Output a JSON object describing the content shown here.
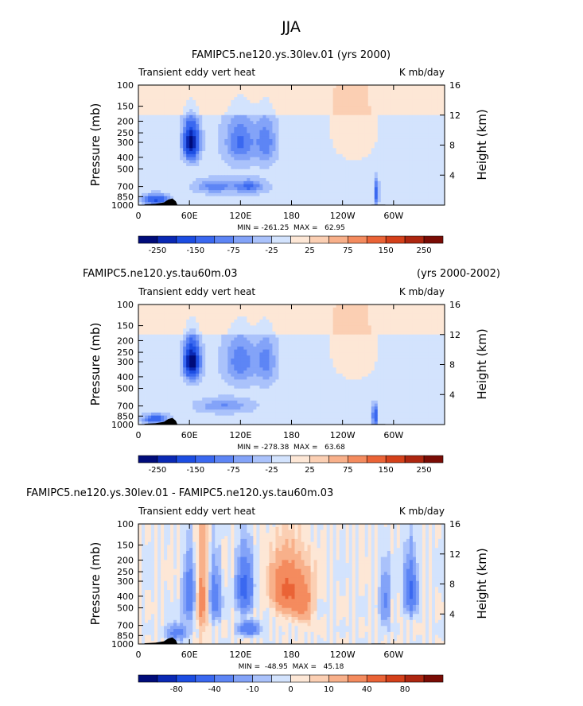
{
  "season": "JJA",
  "colors": {
    "blue": [
      "#000c7a",
      "#0a29b4",
      "#1c4de2",
      "#3a68f0",
      "#5d85f5",
      "#83a3f8",
      "#aac2fb",
      "#d3e3fd"
    ],
    "red": [
      "#fde7d6",
      "#fbcfb3",
      "#f8b08a",
      "#f48b5e",
      "#ea6336",
      "#d4401a",
      "#ad2610",
      "#7a0c05"
    ],
    "neutral": "#fdfdfd"
  },
  "chart_data": [
    {
      "type": "heatmap",
      "title_left": "FAMIPC5.ne120.ys.30lev.01 (yrs 2000)",
      "title_right": "",
      "subtitle": "Transient eddy vert heat",
      "units": "K mb/day",
      "ylabel_left": "Pressure (mb)",
      "ylabel_right": "Height (km)",
      "pressure_ticks": [
        "100",
        "150",
        "200",
        "250",
        "300",
        "400",
        "500",
        "700",
        "850",
        "1000"
      ],
      "height_ticks": [
        "16",
        "12",
        "8",
        "4"
      ],
      "x_ticks": [
        "0",
        "60E",
        "120E",
        "180",
        "120W",
        "60W"
      ],
      "min_max": "MIN = -261.25  MAX =   62.95",
      "colorbar_labels": [
        "-250",
        "-150",
        "-75",
        "-25",
        "25",
        "75",
        "150",
        "250"
      ],
      "colorbar_levels": [
        -300,
        -250,
        -200,
        -150,
        -100,
        -75,
        -50,
        -25,
        0,
        25,
        50,
        75,
        100,
        150,
        200,
        250,
        300
      ],
      "value_range": [
        -261.25,
        62.95
      ],
      "features": [
        {
          "lon": 62,
          "p": 300,
          "value": -261,
          "spread_lon": 6,
          "spread_p": 70
        },
        {
          "lon": 120,
          "p": 300,
          "value": -90,
          "spread_lon": 12,
          "spread_p": 90
        },
        {
          "lon": 150,
          "p": 300,
          "value": -75,
          "spread_lon": 8,
          "spread_p": 90
        },
        {
          "lon": 90,
          "p": 700,
          "value": -75,
          "spread_lon": 15,
          "spread_p": 60
        },
        {
          "lon": 130,
          "p": 700,
          "value": -90,
          "spread_lon": 12,
          "spread_p": 60
        },
        {
          "lon": 280,
          "p": 800,
          "value": -120,
          "spread_lon": 2,
          "spread_p": 150
        },
        {
          "lon": 20,
          "p": 900,
          "value": -150,
          "spread_lon": 10,
          "spread_p": 60
        },
        {
          "lon": 250,
          "p": 200,
          "value": 25,
          "spread_lon": 20,
          "spread_p": 150
        }
      ]
    },
    {
      "type": "heatmap",
      "title_left": "FAMIPC5.ne120.ys.tau60m.03",
      "title_right": "(yrs 2000-2002)",
      "subtitle": "Transient eddy vert heat",
      "units": "K mb/day",
      "ylabel_left": "Pressure (mb)",
      "ylabel_right": "Height (km)",
      "pressure_ticks": [
        "100",
        "150",
        "200",
        "250",
        "300",
        "400",
        "500",
        "700",
        "850",
        "1000"
      ],
      "height_ticks": [
        "16",
        "12",
        "8",
        "4"
      ],
      "x_ticks": [
        "0",
        "60E",
        "120E",
        "180",
        "120W",
        "60W"
      ],
      "min_max": "MIN = -278.38  MAX =   63.68",
      "colorbar_labels": [
        "-250",
        "-150",
        "-75",
        "-25",
        "25",
        "75",
        "150",
        "250"
      ],
      "colorbar_levels": [
        -300,
        -250,
        -200,
        -150,
        -100,
        -75,
        -50,
        -25,
        0,
        25,
        50,
        75,
        100,
        150,
        200,
        250,
        300
      ],
      "value_range": [
        -278.38,
        63.68
      ],
      "features": [
        {
          "lon": 63,
          "p": 300,
          "value": -278,
          "spread_lon": 6,
          "spread_p": 70
        },
        {
          "lon": 120,
          "p": 300,
          "value": -80,
          "spread_lon": 12,
          "spread_p": 90
        },
        {
          "lon": 150,
          "p": 300,
          "value": -70,
          "spread_lon": 8,
          "spread_p": 90
        },
        {
          "lon": 100,
          "p": 700,
          "value": -60,
          "spread_lon": 20,
          "spread_p": 60
        },
        {
          "lon": 278,
          "p": 850,
          "value": -150,
          "spread_lon": 2,
          "spread_p": 120
        },
        {
          "lon": 20,
          "p": 900,
          "value": -120,
          "spread_lon": 10,
          "spread_p": 60
        },
        {
          "lon": 250,
          "p": 200,
          "value": 25,
          "spread_lon": 20,
          "spread_p": 150
        }
      ]
    },
    {
      "type": "heatmap",
      "title_left": "FAMIPC5.ne120.ys.30lev.01 - FAMIPC5.ne120.ys.tau60m.03",
      "title_right": "",
      "subtitle": "Transient eddy vert heat",
      "units": "K mb/day",
      "ylabel_left": "Pressure (mb)",
      "ylabel_right": "Height (km)",
      "pressure_ticks": [
        "100",
        "150",
        "200",
        "250",
        "300",
        "400",
        "500",
        "700",
        "850",
        "1000"
      ],
      "height_ticks": [
        "16",
        "12",
        "8",
        "4"
      ],
      "x_ticks": [
        "0",
        "60E",
        "120E",
        "180",
        "120W",
        "60W"
      ],
      "min_max": "MIN =  -48.95  MAX =   45.18",
      "colorbar_labels": [
        "-80",
        "-40",
        "-10",
        "0",
        "10",
        "40",
        "80"
      ],
      "colorbar_levels": [
        -120,
        -100,
        -80,
        -60,
        -40,
        -20,
        -10,
        -5,
        0,
        5,
        10,
        20,
        40,
        60,
        80,
        100,
        120
      ],
      "value_range": [
        -48.95,
        45.18
      ],
      "features": [
        {
          "lon": 175,
          "p": 350,
          "value": 45,
          "spread_lon": 12,
          "spread_p": 120
        },
        {
          "lon": 75,
          "p": 400,
          "value": 25,
          "spread_lon": 5,
          "spread_p": 250
        },
        {
          "lon": 125,
          "p": 350,
          "value": -49,
          "spread_lon": 6,
          "spread_p": 120
        },
        {
          "lon": 60,
          "p": 400,
          "value": -35,
          "spread_lon": 5,
          "spread_p": 150
        },
        {
          "lon": 90,
          "p": 400,
          "value": -30,
          "spread_lon": 5,
          "spread_p": 150
        },
        {
          "lon": 320,
          "p": 350,
          "value": -45,
          "spread_lon": 5,
          "spread_p": 120
        },
        {
          "lon": 130,
          "p": 750,
          "value": -40,
          "spread_lon": 8,
          "spread_p": 60
        },
        {
          "lon": 45,
          "p": 800,
          "value": -30,
          "spread_lon": 8,
          "spread_p": 80
        },
        {
          "lon": 290,
          "p": 450,
          "value": -25,
          "spread_lon": 4,
          "spread_p": 150
        },
        {
          "lon": 195,
          "p": 450,
          "value": 20,
          "spread_lon": 8,
          "spread_p": 150
        }
      ]
    }
  ]
}
